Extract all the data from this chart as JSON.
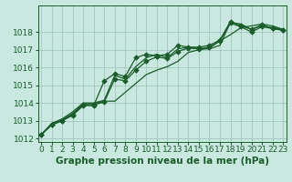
{
  "title": "Graphe pression niveau de la mer (hPa)",
  "background_color": "#c8e8e0",
  "plot_bg_color": "#c8e8e0",
  "grid_color": "#9bbfb8",
  "line_color": "#1a5c2a",
  "xlim": [
    -0.3,
    23.3
  ],
  "ylim": [
    1011.8,
    1019.5
  ],
  "yticks": [
    1012,
    1013,
    1014,
    1015,
    1016,
    1017,
    1018
  ],
  "xticks": [
    0,
    1,
    2,
    3,
    4,
    5,
    6,
    7,
    8,
    9,
    10,
    11,
    12,
    13,
    14,
    15,
    16,
    17,
    18,
    19,
    20,
    21,
    22,
    23
  ],
  "series": [
    {
      "y": [
        1012.2,
        1012.8,
        1013.0,
        1013.3,
        1013.85,
        1013.85,
        1015.25,
        1015.65,
        1015.5,
        1016.55,
        1016.75,
        1016.65,
        1016.75,
        1017.25,
        1017.15,
        1017.15,
        1017.25,
        1017.55,
        1018.6,
        1018.35,
        1018.15,
        1018.4,
        1018.2,
        1018.1
      ],
      "marker": true,
      "marker_style": "D",
      "ms": 2.8,
      "lw": 0.9
    },
    {
      "y": [
        1012.2,
        1012.75,
        1013.0,
        1013.35,
        1013.9,
        1013.9,
        1014.05,
        1015.35,
        1015.25,
        1015.85,
        1016.35,
        1016.6,
        1016.5,
        1016.9,
        1017.1,
        1017.05,
        1017.15,
        1017.5,
        1018.5,
        1018.3,
        1018.0,
        1018.3,
        1018.2,
        1018.1
      ],
      "marker": true,
      "marker_style": "D",
      "ms": 2.8,
      "lw": 0.9
    },
    {
      "y": [
        1012.2,
        1012.8,
        1013.05,
        1013.4,
        1013.95,
        1013.95,
        1014.1,
        1014.1,
        1014.6,
        1015.1,
        1015.6,
        1015.85,
        1016.05,
        1016.35,
        1016.85,
        1017.0,
        1017.1,
        1017.5,
        1017.85,
        1018.25,
        1018.35,
        1018.45,
        1018.35,
        1018.15
      ],
      "marker": false,
      "marker_style": null,
      "ms": 0,
      "lw": 0.9
    },
    {
      "y": [
        1012.2,
        1012.85,
        1013.1,
        1013.5,
        1014.0,
        1014.0,
        1014.15,
        1015.55,
        1015.35,
        1016.05,
        1016.55,
        1016.75,
        1016.55,
        1017.05,
        1017.15,
        1017.05,
        1017.05,
        1017.25,
        1018.55,
        1018.45,
        1018.15,
        1018.35,
        1018.25,
        1018.15
      ],
      "marker": false,
      "marker_style": null,
      "ms": 0,
      "lw": 0.9
    }
  ],
  "fontsize_label": 7.5,
  "fontsize_tick": 6.5
}
